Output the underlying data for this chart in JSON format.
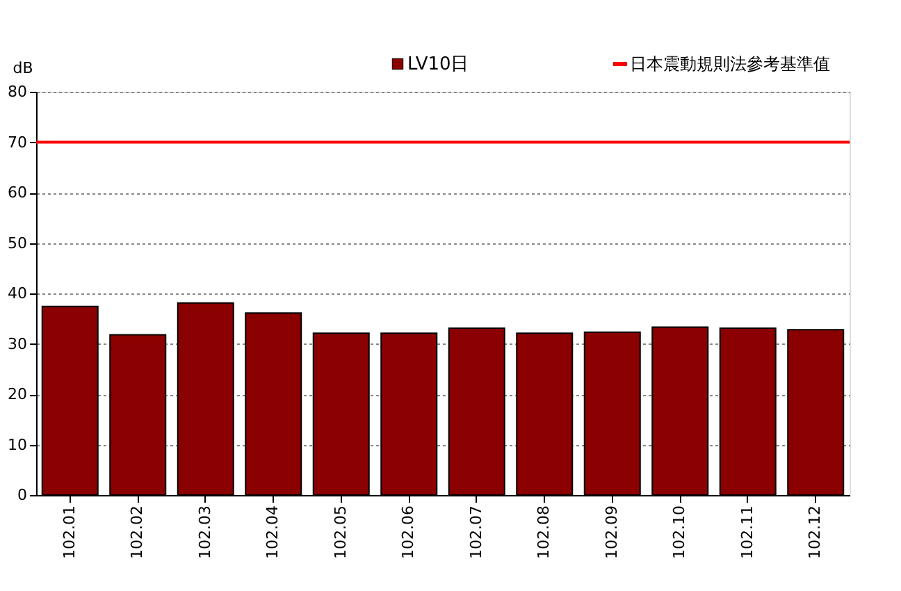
{
  "chart_data": {
    "type": "bar",
    "ylabel": "dB",
    "categories": [
      "102.01",
      "102.02",
      "102.03",
      "102.04",
      "102.05",
      "102.06",
      "102.07",
      "102.08",
      "102.09",
      "102.10",
      "102.11",
      "102.12"
    ],
    "series": [
      {
        "name": "LV10日",
        "color": "#8b0000",
        "values": [
          37.4,
          31.8,
          38.1,
          36.1,
          32.1,
          32.1,
          33.1,
          32.1,
          32.3,
          33.3,
          33.1,
          32.8
        ]
      }
    ],
    "ylim": [
      0,
      80
    ],
    "yticks": [
      0,
      10,
      20,
      30,
      40,
      50,
      60,
      70,
      80
    ],
    "ref_lines": [
      {
        "axis": "y",
        "value": 70,
        "label": "日本震動規則法參考基準值",
        "color": "#ff0000"
      }
    ],
    "grid": "y",
    "legend": "top"
  }
}
